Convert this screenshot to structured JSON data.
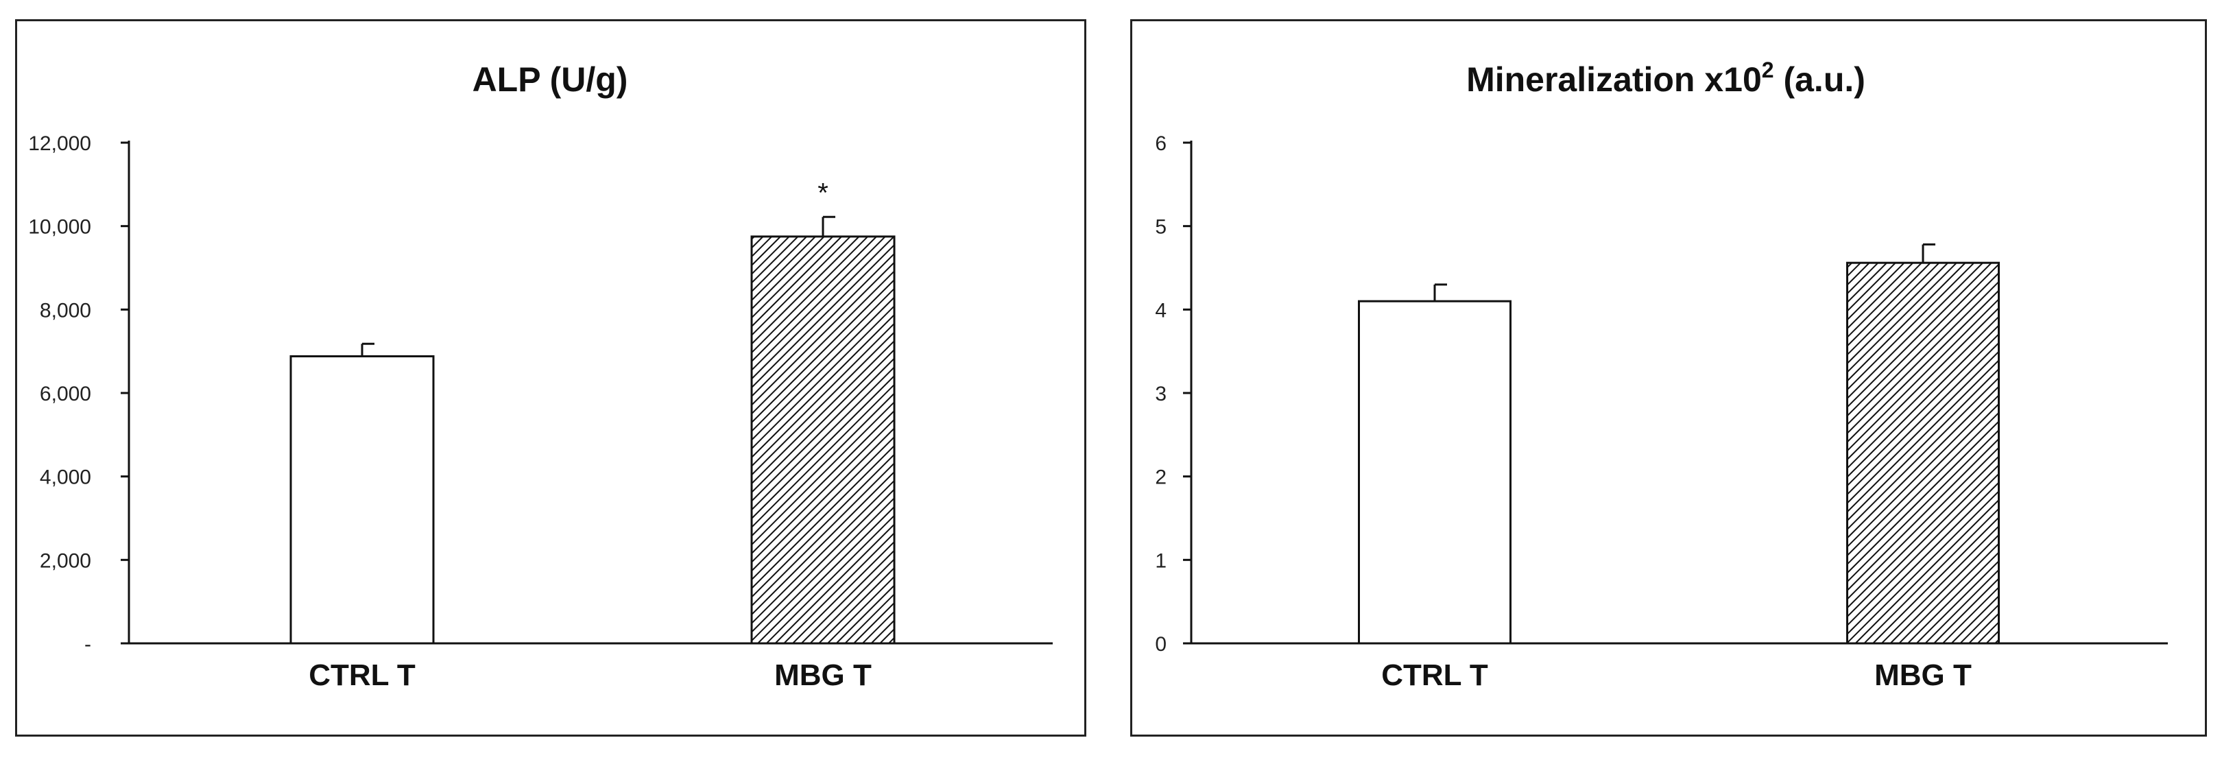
{
  "chart_data": [
    {
      "type": "bar",
      "title": "ALP (U/g)",
      "categories": [
        "CTRL T",
        "MBG T"
      ],
      "values": [
        6880,
        9750
      ],
      "errors": [
        300,
        470
      ],
      "patterns": [
        "none",
        "hatched"
      ],
      "ylim": [
        0,
        12000
      ],
      "yticks": [
        0,
        2000,
        4000,
        6000,
        8000,
        10000,
        12000
      ],
      "ytick_labels": [
        "-",
        "2,000",
        "4,000",
        "6,000",
        "8,000",
        "10,000",
        "12,000"
      ],
      "annotations": [
        {
          "category": "MBG T",
          "text": "*"
        }
      ],
      "grid": false
    },
    {
      "type": "bar",
      "title_main": "Mineralization x10",
      "title_sup": "2",
      "title_tail": " (a.u.)",
      "categories": [
        "CTRL T",
        "MBG T"
      ],
      "values": [
        4.1,
        4.56
      ],
      "errors": [
        0.2,
        0.22
      ],
      "patterns": [
        "none",
        "hatched"
      ],
      "ylim": [
        0,
        6
      ],
      "yticks": [
        0,
        1,
        2,
        3,
        4,
        5,
        6
      ],
      "ytick_labels": [
        "0",
        "1",
        "2",
        "3",
        "4",
        "5",
        "6"
      ],
      "grid": false
    }
  ]
}
